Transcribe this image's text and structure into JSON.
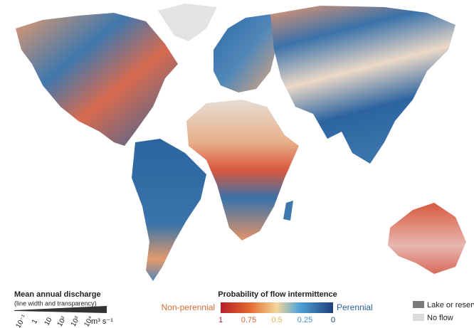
{
  "discharge_legend": {
    "title": "Mean annual discharge",
    "subtitle": "(line width and transparency)",
    "ticks": [
      "10⁻¹",
      "1",
      "10",
      "10²",
      "10³",
      "10⁴"
    ],
    "unit": "m³ s⁻¹"
  },
  "intermittence_legend": {
    "title": "Probability of flow intermittence",
    "left_label": "Non-perennial",
    "right_label": "Perennial",
    "ticks": [
      1,
      0.75,
      0.5,
      0.25,
      0
    ]
  },
  "other_legend": {
    "items": [
      "Lake or reservoir",
      "No flow"
    ]
  }
}
